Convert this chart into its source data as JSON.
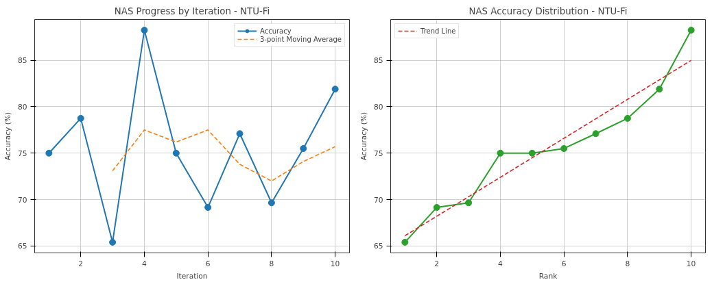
{
  "chart_data": [
    {
      "type": "line",
      "title": "NAS Progress by Iteration - NTU-Fi",
      "xlabel": "Iteration",
      "ylabel": "Accuracy (%)",
      "x": [
        1,
        2,
        3,
        4,
        5,
        6,
        7,
        8,
        9,
        10
      ],
      "series": [
        {
          "name": "Accuracy",
          "color": "#1f77b4",
          "marker": "circle",
          "line_style": "solid",
          "values": [
            75.0,
            78.75,
            65.4,
            88.25,
            75.0,
            69.15,
            77.1,
            69.65,
            75.5,
            81.9
          ]
        },
        {
          "name": "3-point Moving Average",
          "color": "#ff7f0e",
          "marker": "none",
          "line_style": "dashed",
          "x": [
            3,
            4,
            5,
            6,
            7,
            8,
            9,
            10
          ],
          "values": [
            73.1,
            77.5,
            76.2,
            77.5,
            73.8,
            72.0,
            74.1,
            75.7
          ]
        }
      ],
      "xlim": [
        0.55,
        10.45
      ],
      "ylim": [
        64.25,
        89.4
      ],
      "xticks": [
        2,
        4,
        6,
        8,
        10
      ],
      "yticks": [
        65,
        70,
        75,
        80,
        85
      ],
      "grid": true,
      "legend": "top right"
    },
    {
      "type": "line",
      "title": "NAS Accuracy Distribution - NTU-Fi",
      "xlabel": "Rank",
      "ylabel": "Accuracy (%)",
      "x": [
        1,
        2,
        3,
        4,
        5,
        6,
        7,
        8,
        9,
        10
      ],
      "series": [
        {
          "color": "#2ca02c",
          "marker": "circle",
          "line_style": "solid",
          "values": [
            65.4,
            69.15,
            69.65,
            75.0,
            75.0,
            75.5,
            77.1,
            78.75,
            81.9,
            88.25
          ]
        },
        {
          "name": "Trend Line",
          "color": "#d62728",
          "marker": "none",
          "line_style": "dashed",
          "x": [
            1,
            10
          ],
          "values": [
            66.1,
            85.0
          ]
        }
      ],
      "xlim": [
        0.55,
        10.45
      ],
      "ylim": [
        64.25,
        89.4
      ],
      "xticks": [
        2,
        4,
        6,
        8,
        10
      ],
      "yticks": [
        65,
        70,
        75,
        80,
        85
      ],
      "grid": true,
      "legend": "top left"
    }
  ]
}
